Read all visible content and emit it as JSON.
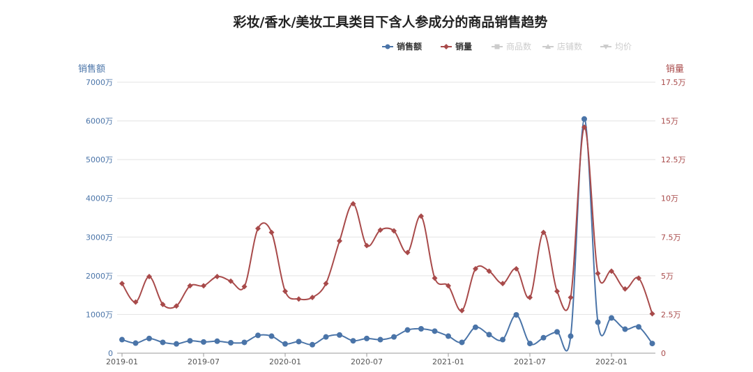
{
  "chart_data": {
    "type": "line",
    "title": "彩妆/香水/美妆工具类目下含人参成分的商品销售趋势",
    "x": [
      "2019-01",
      "2019-02",
      "2019-03",
      "2019-04",
      "2019-05",
      "2019-06",
      "2019-07",
      "2019-08",
      "2019-09",
      "2019-10",
      "2019-11",
      "2019-12",
      "2020-01",
      "2020-02",
      "2020-03",
      "2020-04",
      "2020-05",
      "2020-06",
      "2020-07",
      "2020-08",
      "2020-09",
      "2020-10",
      "2020-11",
      "2020-12",
      "2021-01",
      "2021-02",
      "2021-03",
      "2021-04",
      "2021-05",
      "2021-06",
      "2021-07",
      "2021-08",
      "2021-09",
      "2021-10",
      "2021-11",
      "2021-12",
      "2022-01",
      "2022-02",
      "2022-03",
      "2022-04"
    ],
    "x_tick_labels": [
      "2019-01",
      "2019-07",
      "2020-01",
      "2020-07",
      "2021-01",
      "2021-07",
      "2022-01"
    ],
    "y_left": {
      "label": "销售额",
      "range": [
        0,
        7000
      ],
      "ticks": [
        0,
        1000,
        2000,
        3000,
        4000,
        5000,
        6000,
        7000
      ],
      "tick_labels": [
        "0",
        "1000万",
        "2000万",
        "3000万",
        "4000万",
        "5000万",
        "6000万",
        "7000万"
      ],
      "color": "#4a74a8"
    },
    "y_right": {
      "label": "销量",
      "range": [
        0,
        17.5
      ],
      "ticks": [
        0,
        2.5,
        5,
        7.5,
        10,
        12.5,
        15,
        17.5
      ],
      "tick_labels": [
        "0",
        "2.5万",
        "5万",
        "7.5万",
        "10万",
        "12.5万",
        "15万",
        "17.5万"
      ],
      "color": "#a84a4a"
    },
    "series": [
      {
        "name": "销售额",
        "axis": "left",
        "color": "#4a74a8",
        "marker": "circle",
        "values": [
          350,
          260,
          380,
          280,
          240,
          320,
          290,
          310,
          270,
          280,
          460,
          440,
          240,
          300,
          220,
          420,
          470,
          320,
          380,
          350,
          420,
          600,
          630,
          570,
          440,
          280,
          670,
          480,
          350,
          990,
          250,
          400,
          550,
          440,
          6050,
          800,
          910,
          620,
          680,
          250
        ]
      },
      {
        "name": "销量",
        "axis": "right",
        "color": "#a84a4a",
        "marker": "diamond",
        "values": [
          4.5,
          3.3,
          4.95,
          3.15,
          3.05,
          4.35,
          4.35,
          4.95,
          4.65,
          4.3,
          8.05,
          7.8,
          4.0,
          3.5,
          3.6,
          4.5,
          7.25,
          9.65,
          6.95,
          7.95,
          7.9,
          6.5,
          8.85,
          4.85,
          4.35,
          2.75,
          5.45,
          5.3,
          4.5,
          5.45,
          3.6,
          7.8,
          4.0,
          3.6,
          14.6,
          5.15,
          5.3,
          4.15,
          4.85,
          2.55
        ]
      }
    ],
    "legend": {
      "position": "top-right",
      "items": [
        {
          "label": "销售额",
          "active": true,
          "color": "#4a74a8",
          "marker": "circle"
        },
        {
          "label": "销量",
          "active": true,
          "color": "#a84a4a",
          "marker": "diamond"
        },
        {
          "label": "商品数",
          "active": false,
          "color": "#cccccc",
          "marker": "square"
        },
        {
          "label": "店铺数",
          "active": false,
          "color": "#cccccc",
          "marker": "triangle"
        },
        {
          "label": "均价",
          "active": false,
          "color": "#cccccc",
          "marker": "triangle-down"
        }
      ]
    },
    "grid": true
  }
}
